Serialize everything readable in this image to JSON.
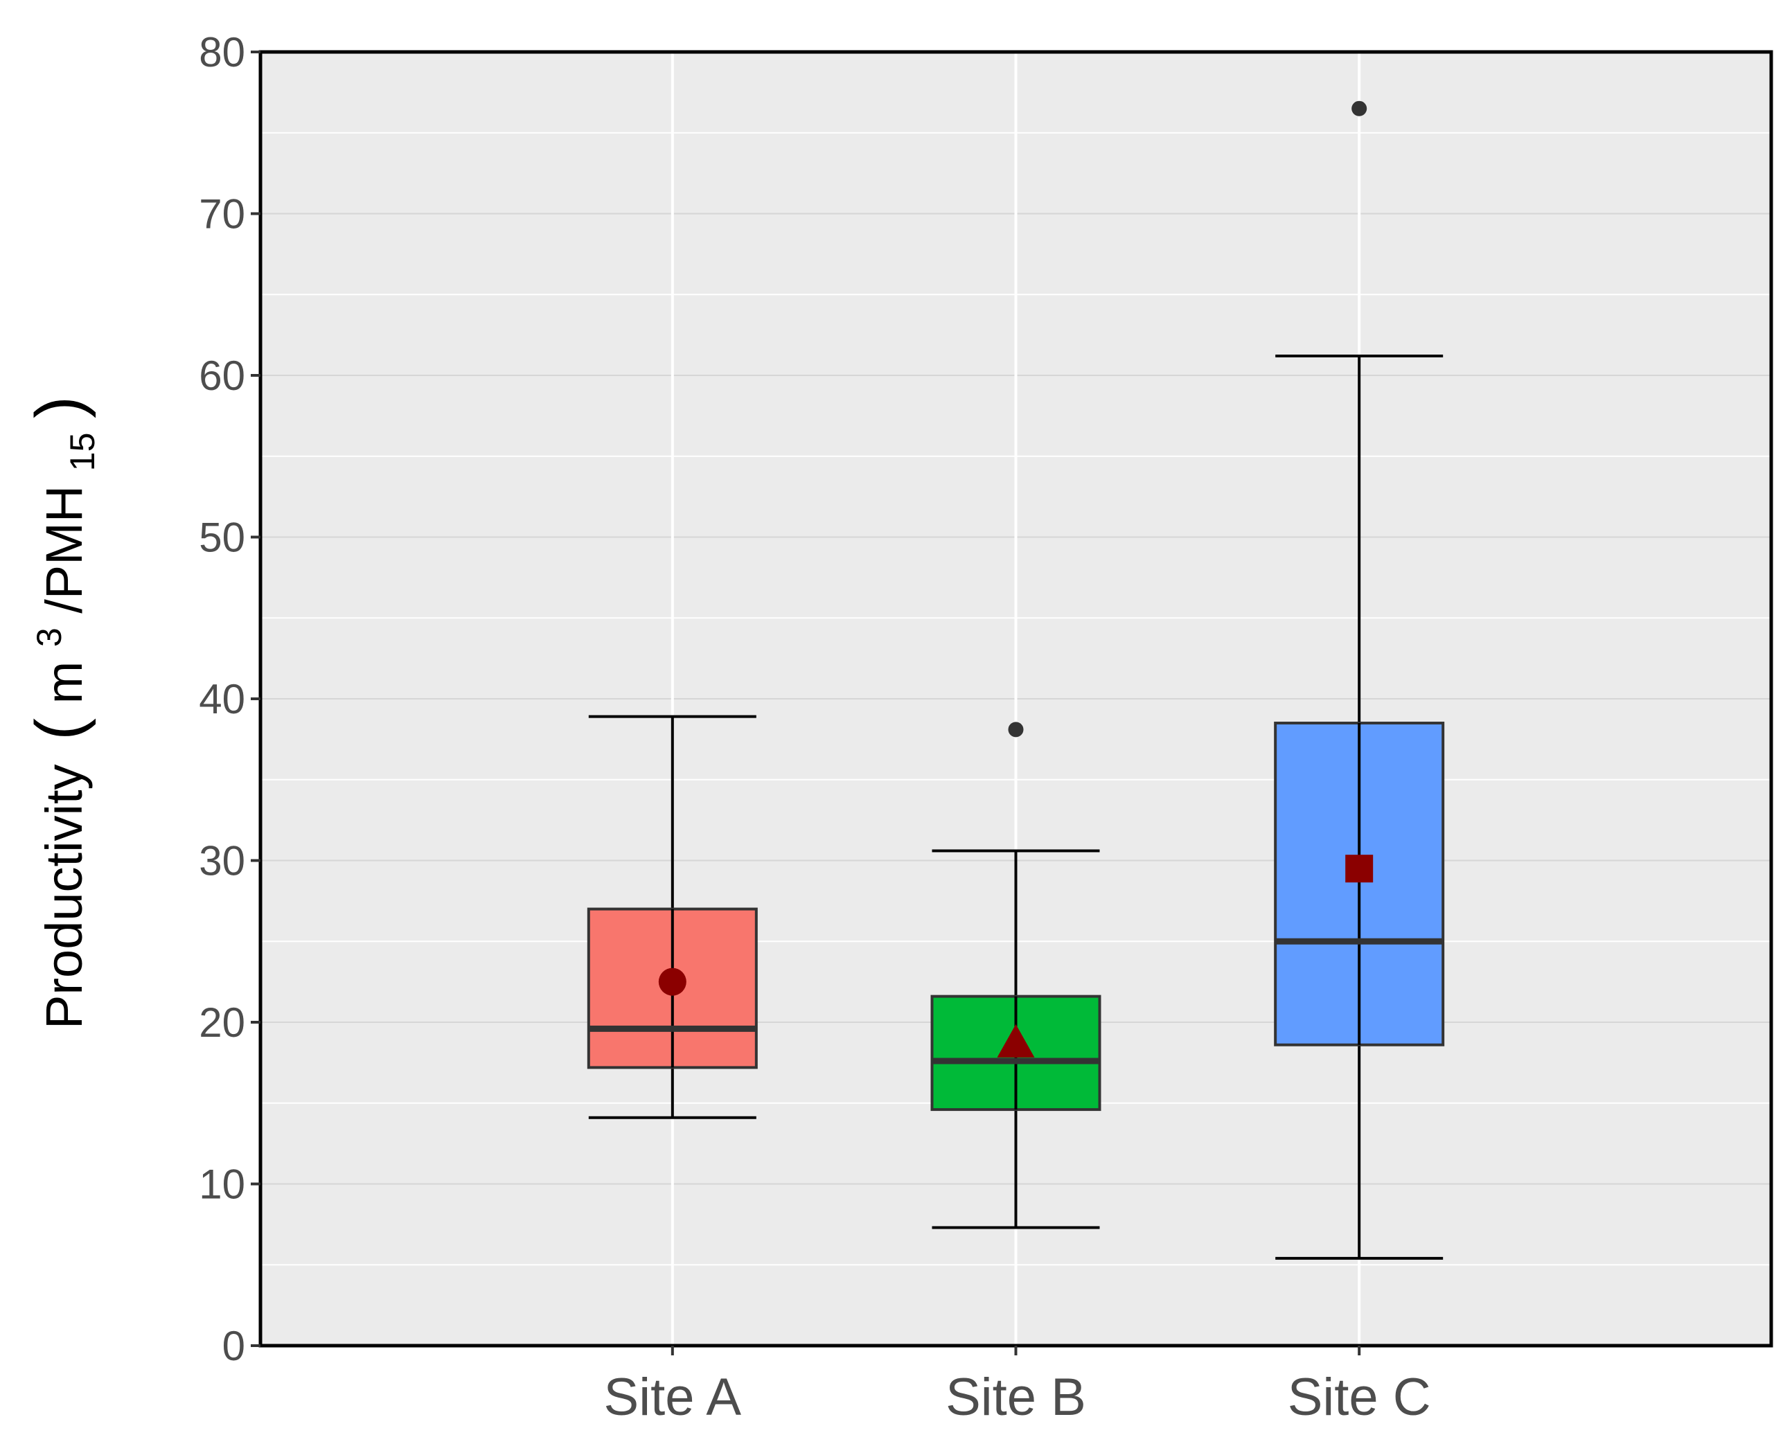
{
  "chart_data": {
    "type": "boxplot",
    "title": "",
    "xlabel": "",
    "ylabel": {
      "text": "Productivity",
      "open_paren": "(",
      "unit_base": "m",
      "unit_sup": "3",
      "unit_sep": "/PMH",
      "unit_sub": "15",
      "close_paren": ")"
    },
    "ylim": [
      0,
      80
    ],
    "yticks": [
      0,
      10,
      20,
      30,
      40,
      50,
      60,
      70,
      80
    ],
    "grid": true,
    "categories": [
      "Site A",
      "Site B",
      "Site C"
    ],
    "series": [
      {
        "name": "Site A",
        "fill": "#F8766D",
        "whisker_low": 14.1,
        "q1": 17.2,
        "median": 19.6,
        "q3": 27.0,
        "whisker_high": 38.9,
        "outliers": [],
        "mean": 22.5,
        "mean_shape": "circle"
      },
      {
        "name": "Site B",
        "fill": "#00BA38",
        "whisker_low": 7.3,
        "q1": 14.6,
        "median": 17.6,
        "q3": 21.6,
        "whisker_high": 30.6,
        "outliers": [
          38.1
        ],
        "mean": 18.6,
        "mean_shape": "triangle"
      },
      {
        "name": "Site C",
        "fill": "#619CFF",
        "whisker_low": 5.4,
        "q1": 18.6,
        "median": 25.0,
        "q3": 38.5,
        "whisker_high": 61.2,
        "outliers": [
          76.5
        ],
        "mean": 29.5,
        "mean_shape": "square"
      }
    ],
    "colors": {
      "panel": "#EBEBEB",
      "grid": "#FFFFFF",
      "mean_marker": "#8B0000",
      "box_border": "#333333",
      "outlier": "#333333"
    }
  }
}
